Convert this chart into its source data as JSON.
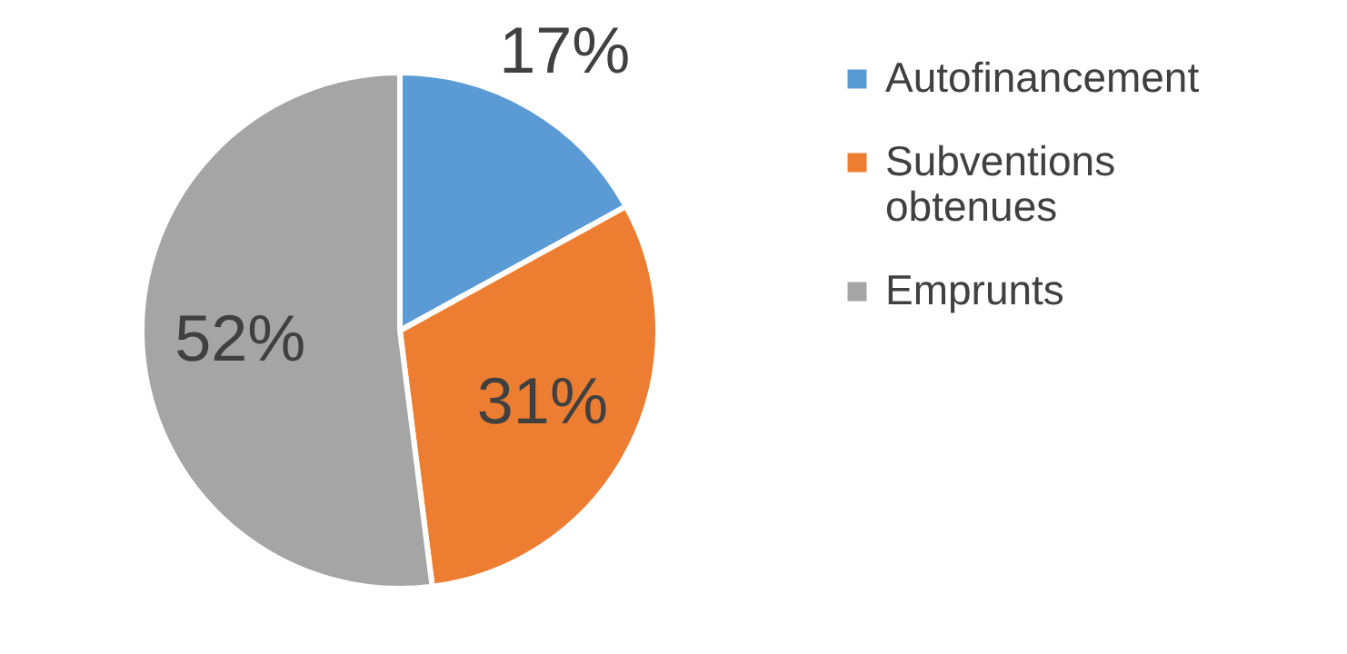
{
  "chart_data": {
    "type": "pie",
    "categories": [
      "Autofinancement",
      "Subventions obtenues",
      "Emprunts"
    ],
    "values": [
      17,
      31,
      52
    ],
    "colors": [
      "#5b9bd5",
      "#ed7d31",
      "#a5a5a5"
    ],
    "value_labels": [
      "17%",
      "31%",
      "52%"
    ],
    "legend": "right"
  }
}
